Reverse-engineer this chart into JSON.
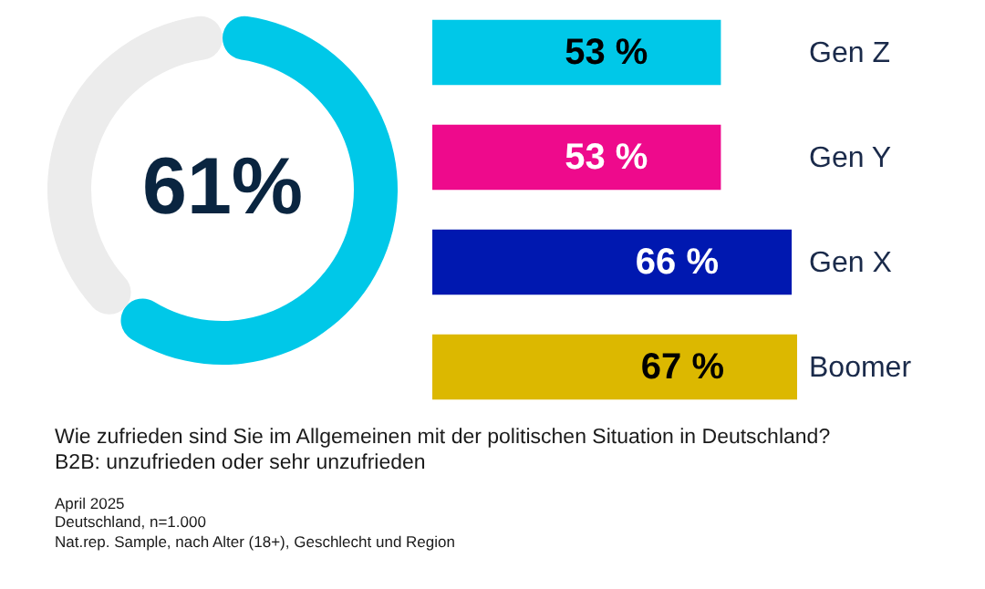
{
  "chart_data": [
    {
      "type": "donut",
      "categories": [
        null,
        null
      ],
      "values": [
        61,
        39
      ],
      "colors": [
        "#00c8e8",
        "#ececec"
      ],
      "annotations": [
        "61%"
      ]
    },
    {
      "type": "bar",
      "orientation": "horizontal",
      "categories": [
        "Gen Z",
        "Gen Y",
        "Gen X",
        "Boomer"
      ],
      "values": [
        53,
        53,
        66,
        67
      ],
      "colors": [
        "#00c8e8",
        "#ee0a8c",
        "#0018b0",
        "#dcb800"
      ],
      "value_labels": [
        "53 %",
        "53 %",
        "66 %",
        "67 %"
      ],
      "annotations": [
        "Wie zufrieden sind Sie im Allgemeinen mit der politischen Situation in Deutschland?",
        "B2B: unzufrieden oder sehr unzufrieden",
        "April 2025",
        "Deutschland, n=1.000",
        "Nat.rep. Sample, nach Alter (18+), Geschlecht und Region"
      ]
    }
  ]
}
